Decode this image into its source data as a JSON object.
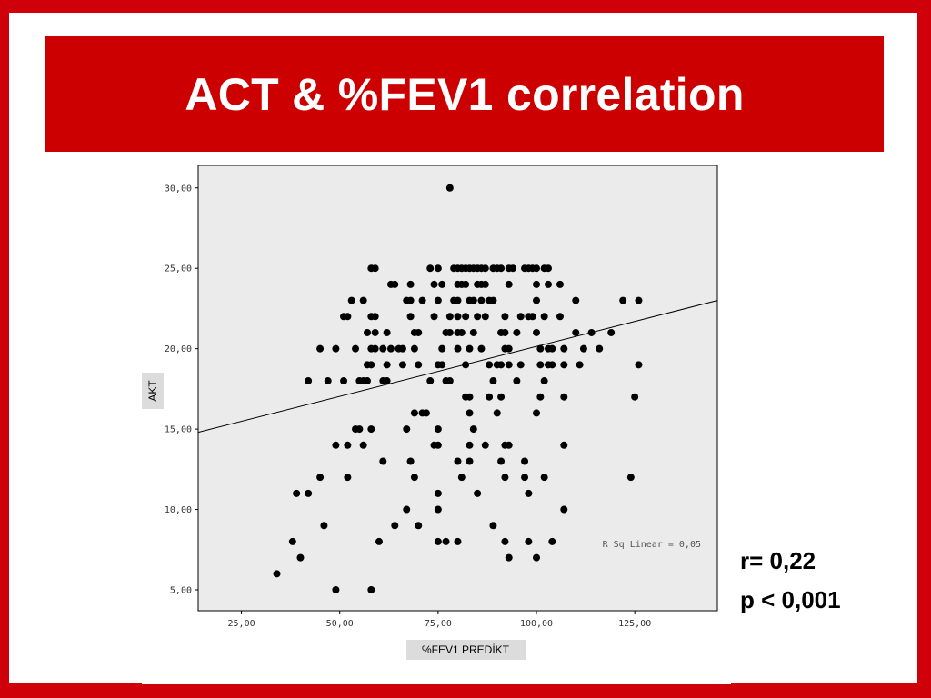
{
  "slide": {
    "title": "ACT & %FEV1 correlation",
    "stat_r": "r= 0,22",
    "stat_p": "p < 0,001"
  },
  "colors": {
    "frame": "#d0000a",
    "title_bar": "#cc0000",
    "plot_bg": "#ebebeb",
    "axis_label_bg": "#dcdcdc",
    "marker": "#000000"
  },
  "chart_data": {
    "type": "scatter",
    "title": "",
    "xlabel": "%FEV1 PREDİKT",
    "ylabel": "AKT",
    "xlim": [
      14,
      146
    ],
    "ylim": [
      3.7,
      31.4
    ],
    "xticks": [
      25,
      50,
      75,
      100,
      125
    ],
    "xtick_labels": [
      "25,00",
      "50,00",
      "75,00",
      "100,00",
      "125,00"
    ],
    "yticks": [
      5,
      10,
      15,
      20,
      25,
      30
    ],
    "ytick_labels": [
      "5,00",
      "10,00",
      "15,00",
      "20,00",
      "25,00",
      "30,00"
    ],
    "grid": false,
    "annotation": "R Sq Linear = 0,05",
    "fit_line": {
      "x": [
        14,
        146
      ],
      "y": [
        14.8,
        23.0
      ]
    },
    "points": [
      [
        78,
        30
      ],
      [
        58,
        25
      ],
      [
        59,
        25
      ],
      [
        73,
        25
      ],
      [
        75,
        25
      ],
      [
        79,
        25
      ],
      [
        80,
        25
      ],
      [
        81,
        25
      ],
      [
        82,
        25
      ],
      [
        83,
        25
      ],
      [
        84,
        25
      ],
      [
        85,
        25
      ],
      [
        86,
        25
      ],
      [
        87,
        25
      ],
      [
        89,
        25
      ],
      [
        90,
        25
      ],
      [
        91,
        25
      ],
      [
        93,
        25
      ],
      [
        94,
        25
      ],
      [
        97,
        25
      ],
      [
        98,
        25
      ],
      [
        99,
        25
      ],
      [
        100,
        25
      ],
      [
        102,
        25
      ],
      [
        103,
        25
      ],
      [
        63,
        24
      ],
      [
        64,
        24
      ],
      [
        68,
        24
      ],
      [
        74,
        24
      ],
      [
        76,
        24
      ],
      [
        80,
        24
      ],
      [
        81,
        24
      ],
      [
        82,
        24
      ],
      [
        85,
        24
      ],
      [
        86,
        24
      ],
      [
        87,
        24
      ],
      [
        93,
        24
      ],
      [
        100,
        24
      ],
      [
        103,
        24
      ],
      [
        106,
        24
      ],
      [
        53,
        23
      ],
      [
        56,
        23
      ],
      [
        67,
        23
      ],
      [
        68,
        23
      ],
      [
        71,
        23
      ],
      [
        75,
        23
      ],
      [
        79,
        23
      ],
      [
        80,
        23
      ],
      [
        83,
        23
      ],
      [
        84,
        23
      ],
      [
        86,
        23
      ],
      [
        88,
        23
      ],
      [
        89,
        23
      ],
      [
        100,
        23
      ],
      [
        110,
        23
      ],
      [
        122,
        23
      ],
      [
        126,
        23
      ],
      [
        51,
        22
      ],
      [
        52,
        22
      ],
      [
        58,
        22
      ],
      [
        59,
        22
      ],
      [
        68,
        22
      ],
      [
        74,
        22
      ],
      [
        78,
        22
      ],
      [
        80,
        22
      ],
      [
        82,
        22
      ],
      [
        85,
        22
      ],
      [
        87,
        22
      ],
      [
        92,
        22
      ],
      [
        96,
        22
      ],
      [
        98,
        22
      ],
      [
        99,
        22
      ],
      [
        102,
        22
      ],
      [
        106,
        22
      ],
      [
        57,
        21
      ],
      [
        59,
        21
      ],
      [
        62,
        21
      ],
      [
        69,
        21
      ],
      [
        70,
        21
      ],
      [
        77,
        21
      ],
      [
        78,
        21
      ],
      [
        80,
        21
      ],
      [
        81,
        21
      ],
      [
        84,
        21
      ],
      [
        91,
        21
      ],
      [
        92,
        21
      ],
      [
        95,
        21
      ],
      [
        100,
        21
      ],
      [
        110,
        21
      ],
      [
        114,
        21
      ],
      [
        119,
        21
      ],
      [
        45,
        20
      ],
      [
        49,
        20
      ],
      [
        54,
        20
      ],
      [
        58,
        20
      ],
      [
        59,
        20
      ],
      [
        61,
        20
      ],
      [
        63,
        20
      ],
      [
        65,
        20
      ],
      [
        66,
        20
      ],
      [
        69,
        20
      ],
      [
        76,
        20
      ],
      [
        80,
        20
      ],
      [
        83,
        20
      ],
      [
        86,
        20
      ],
      [
        92,
        20
      ],
      [
        93,
        20
      ],
      [
        101,
        20
      ],
      [
        103,
        20
      ],
      [
        104,
        20
      ],
      [
        107,
        20
      ],
      [
        112,
        20
      ],
      [
        116,
        20
      ],
      [
        57,
        19
      ],
      [
        58,
        19
      ],
      [
        62,
        19
      ],
      [
        66,
        19
      ],
      [
        70,
        19
      ],
      [
        75,
        19
      ],
      [
        76,
        19
      ],
      [
        82,
        19
      ],
      [
        88,
        19
      ],
      [
        90,
        19
      ],
      [
        91,
        19
      ],
      [
        93,
        19
      ],
      [
        96,
        19
      ],
      [
        101,
        19
      ],
      [
        103,
        19
      ],
      [
        104,
        19
      ],
      [
        107,
        19
      ],
      [
        111,
        19
      ],
      [
        126,
        19
      ],
      [
        42,
        18
      ],
      [
        47,
        18
      ],
      [
        51,
        18
      ],
      [
        55,
        18
      ],
      [
        56,
        18
      ],
      [
        57,
        18
      ],
      [
        61,
        18
      ],
      [
        62,
        18
      ],
      [
        73,
        18
      ],
      [
        77,
        18
      ],
      [
        78,
        18
      ],
      [
        89,
        18
      ],
      [
        95,
        18
      ],
      [
        102,
        18
      ],
      [
        82,
        17
      ],
      [
        83,
        17
      ],
      [
        88,
        17
      ],
      [
        91,
        17
      ],
      [
        101,
        17
      ],
      [
        107,
        17
      ],
      [
        125,
        17
      ],
      [
        69,
        16
      ],
      [
        71,
        16
      ],
      [
        72,
        16
      ],
      [
        83,
        16
      ],
      [
        90,
        16
      ],
      [
        100,
        16
      ],
      [
        54,
        15
      ],
      [
        55,
        15
      ],
      [
        58,
        15
      ],
      [
        67,
        15
      ],
      [
        75,
        15
      ],
      [
        84,
        15
      ],
      [
        49,
        14
      ],
      [
        52,
        14
      ],
      [
        56,
        14
      ],
      [
        74,
        14
      ],
      [
        75,
        14
      ],
      [
        83,
        14
      ],
      [
        87,
        14
      ],
      [
        92,
        14
      ],
      [
        93,
        14
      ],
      [
        107,
        14
      ],
      [
        61,
        13
      ],
      [
        68,
        13
      ],
      [
        80,
        13
      ],
      [
        83,
        13
      ],
      [
        91,
        13
      ],
      [
        97,
        13
      ],
      [
        45,
        12
      ],
      [
        52,
        12
      ],
      [
        69,
        12
      ],
      [
        81,
        12
      ],
      [
        92,
        12
      ],
      [
        97,
        12
      ],
      [
        102,
        12
      ],
      [
        124,
        12
      ],
      [
        39,
        11
      ],
      [
        42,
        11
      ],
      [
        75,
        11
      ],
      [
        85,
        11
      ],
      [
        98,
        11
      ],
      [
        67,
        10
      ],
      [
        75,
        10
      ],
      [
        107,
        10
      ],
      [
        46,
        9
      ],
      [
        64,
        9
      ],
      [
        70,
        9
      ],
      [
        89,
        9
      ],
      [
        38,
        8
      ],
      [
        60,
        8
      ],
      [
        75,
        8
      ],
      [
        77,
        8
      ],
      [
        80,
        8
      ],
      [
        92,
        8
      ],
      [
        98,
        8
      ],
      [
        104,
        8
      ],
      [
        40,
        7
      ],
      [
        93,
        7
      ],
      [
        100,
        7
      ],
      [
        34,
        6
      ],
      [
        49,
        5
      ],
      [
        58,
        5
      ]
    ]
  }
}
